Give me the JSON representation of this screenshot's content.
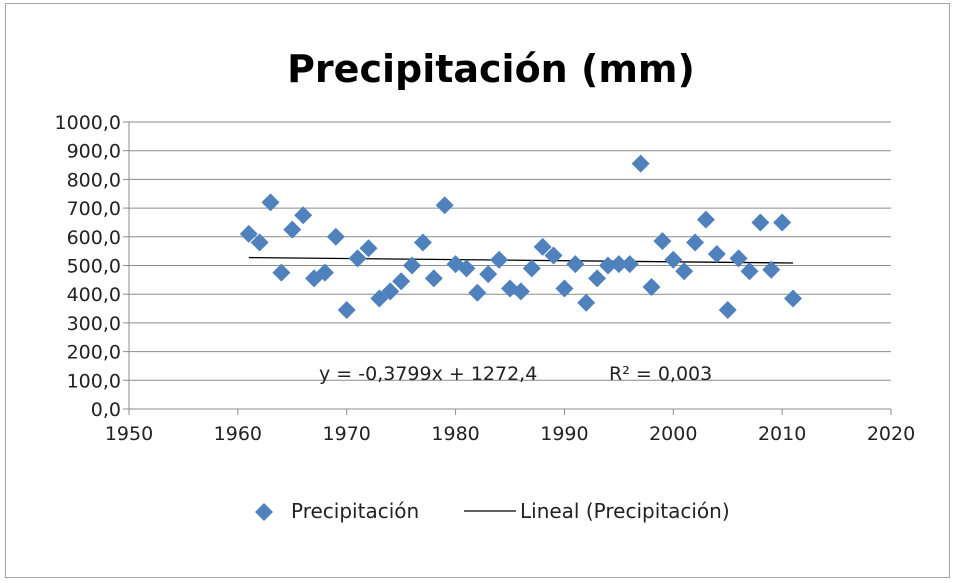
{
  "chart_data": {
    "type": "scatter",
    "title": "Precipitación (mm)",
    "xlim": [
      1950,
      2020
    ],
    "ylim": [
      0,
      1000
    ],
    "x_ticks": [
      1950,
      1960,
      1970,
      1980,
      1990,
      2000,
      2010,
      2020
    ],
    "x_tick_labels": [
      "1950",
      "1960",
      "1970",
      "1980",
      "1990",
      "2000",
      "2010",
      "2020"
    ],
    "y_ticks": [
      0,
      100,
      200,
      300,
      400,
      500,
      600,
      700,
      800,
      900,
      1000
    ],
    "y_tick_labels": [
      "0,0",
      "100,0",
      "200,0",
      "300,0",
      "400,0",
      "500,0",
      "600,0",
      "700,0",
      "800,0",
      "900,0",
      "1000,0"
    ],
    "grid": "horizontal",
    "legend_position": "bottom",
    "series": [
      {
        "name": "Precipitación",
        "marker": "diamond",
        "color": "#4f81bd",
        "x": [
          1961,
          1962,
          1963,
          1964,
          1965,
          1966,
          1967,
          1968,
          1969,
          1970,
          1971,
          1972,
          1973,
          1974,
          1975,
          1976,
          1977,
          1978,
          1979,
          1980,
          1981,
          1982,
          1983,
          1984,
          1985,
          1986,
          1987,
          1988,
          1989,
          1990,
          1991,
          1992,
          1993,
          1994,
          1995,
          1996,
          1997,
          1998,
          1999,
          2000,
          2001,
          2002,
          2003,
          2004,
          2005,
          2006,
          2007,
          2008,
          2009,
          2010,
          2011
        ],
        "y": [
          610,
          580,
          720,
          475,
          625,
          675,
          455,
          475,
          600,
          345,
          525,
          560,
          385,
          410,
          445,
          500,
          580,
          455,
          710,
          505,
          490,
          405,
          470,
          520,
          420,
          410,
          490,
          565,
          535,
          420,
          505,
          370,
          455,
          500,
          505,
          505,
          855,
          425,
          585,
          520,
          480,
          580,
          660,
          540,
          345,
          525,
          480,
          650,
          485,
          650,
          385
        ]
      },
      {
        "name": "Lineal (Precipitación)",
        "color": "#000000",
        "x": [
          1961,
          2011
        ],
        "y": [
          527.7,
          508.7
        ]
      }
    ],
    "trendline_equation": "y = -0,3799x + 1272,4",
    "r_squared_label": "R² = 0,003"
  }
}
